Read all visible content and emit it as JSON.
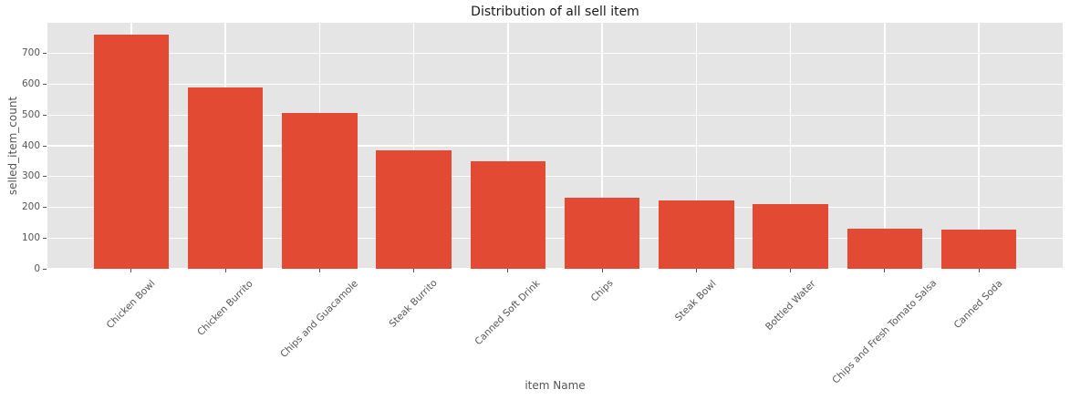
{
  "chart_data": {
    "type": "bar",
    "title": "Distribution of all sell item",
    "xlabel": "item Name",
    "ylabel": "selled_item_count",
    "categories": [
      "Chicken Bowl",
      "Chicken Burrito",
      "Chips and Guacamole",
      "Steak Burrito",
      "Canned Soft Drink",
      "Chips",
      "Steak Bowl",
      "Bottled Water",
      "Chips and Fresh Tomato Salsa",
      "Canned Soda"
    ],
    "values": [
      761,
      591,
      506,
      386,
      351,
      230,
      221,
      211,
      130,
      126
    ],
    "yticks": [
      0,
      100,
      200,
      300,
      400,
      500,
      600,
      700
    ],
    "ylim": [
      0,
      800
    ],
    "grid": "on",
    "legend_position": "none",
    "colors": {
      "bar": "#E24A33",
      "plot_background": "#E5E5E5",
      "figure_background": "#FFFFFF",
      "gridline": "#FFFFFF",
      "tick_text": "#555555",
      "title_text": "#1A1A1A"
    }
  }
}
